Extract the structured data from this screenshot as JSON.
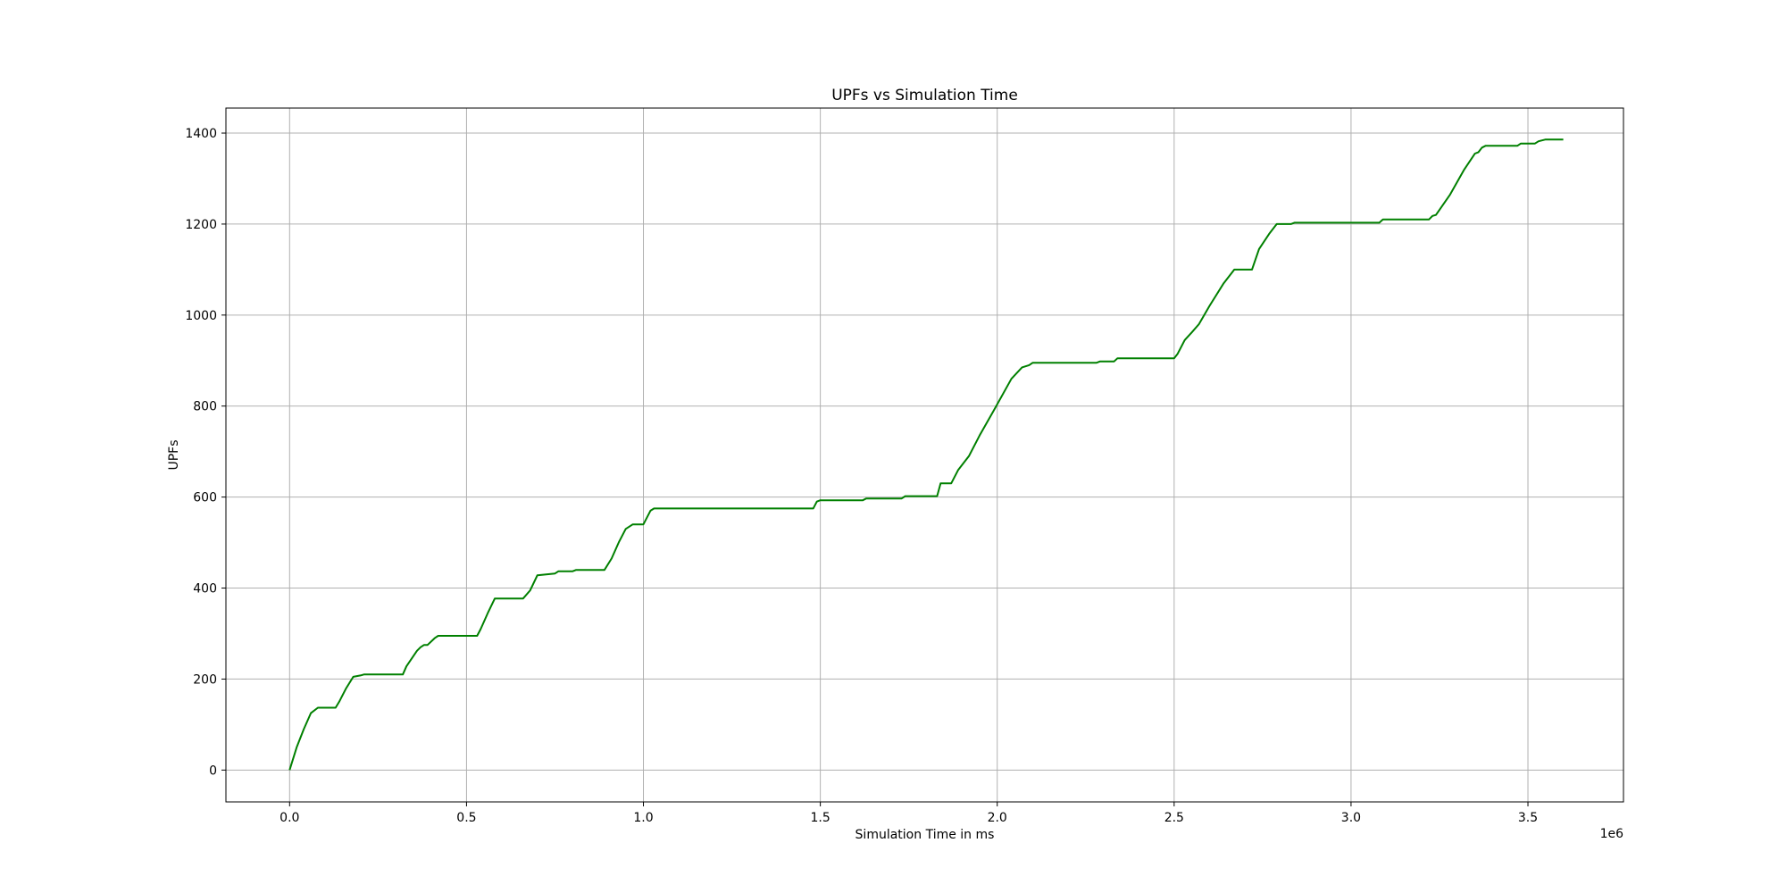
{
  "chart_data": {
    "type": "line",
    "title": "UPFs vs Simulation Time",
    "xlabel": "Simulation Time in ms",
    "ylabel": "UPFs",
    "x_offset_text": "1e6",
    "x_scale": 1000000,
    "xlim": [
      -0.18,
      3.77
    ],
    "ylim": [
      -70,
      1455
    ],
    "xticks": [
      0.0,
      0.5,
      1.0,
      1.5,
      2.0,
      2.5,
      3.0,
      3.5
    ],
    "xtick_labels": [
      "0.0",
      "0.5",
      "1.0",
      "1.5",
      "2.0",
      "2.5",
      "3.0",
      "3.5"
    ],
    "yticks": [
      0,
      200,
      400,
      600,
      800,
      1000,
      1200,
      1400
    ],
    "ytick_labels": [
      "0",
      "200",
      "400",
      "600",
      "800",
      "1000",
      "1200",
      "1400"
    ],
    "grid": true,
    "line_color": "#008000",
    "series": [
      {
        "x": [
          0.0,
          0.02,
          0.04,
          0.06,
          0.08,
          0.13,
          0.14,
          0.16,
          0.18,
          0.2,
          0.21,
          0.32,
          0.33,
          0.36,
          0.37,
          0.38,
          0.39,
          0.41,
          0.42,
          0.53,
          0.54,
          0.56,
          0.58,
          0.66,
          0.68,
          0.7,
          0.75,
          0.76,
          0.8,
          0.81,
          0.89,
          0.91,
          0.93,
          0.95,
          0.97,
          1.0,
          1.02,
          1.03,
          1.48,
          1.49,
          1.5,
          1.62,
          1.63,
          1.73,
          1.74,
          1.83,
          1.84,
          1.87,
          1.89,
          1.92,
          1.95,
          1.99,
          2.04,
          2.07,
          2.09,
          2.1,
          2.28,
          2.29,
          2.33,
          2.34,
          2.5,
          2.51,
          2.53,
          2.55,
          2.57,
          2.6,
          2.64,
          2.67,
          2.72,
          2.74,
          2.77,
          2.79,
          2.83,
          2.84,
          3.08,
          3.09,
          3.22,
          3.23,
          3.24,
          3.28,
          3.32,
          3.35,
          3.36,
          3.37,
          3.38,
          3.47,
          3.48,
          3.52,
          3.53,
          3.55,
          3.6
        ],
        "y": [
          0,
          50,
          90,
          125,
          137,
          137,
          150,
          180,
          205,
          208,
          210,
          210,
          228,
          262,
          270,
          275,
          275,
          290,
          295,
          295,
          310,
          345,
          377,
          377,
          395,
          428,
          432,
          437,
          437,
          440,
          440,
          465,
          500,
          530,
          540,
          540,
          570,
          575,
          575,
          590,
          593,
          593,
          597,
          597,
          602,
          602,
          630,
          630,
          660,
          690,
          735,
          790,
          860,
          885,
          890,
          895,
          895,
          898,
          898,
          905,
          905,
          915,
          945,
          962,
          980,
          1020,
          1070,
          1100,
          1100,
          1145,
          1180,
          1200,
          1200,
          1203,
          1203,
          1210,
          1210,
          1218,
          1220,
          1265,
          1320,
          1355,
          1358,
          1368,
          1372,
          1372,
          1377,
          1377,
          1382,
          1386,
          1386
        ]
      }
    ]
  }
}
